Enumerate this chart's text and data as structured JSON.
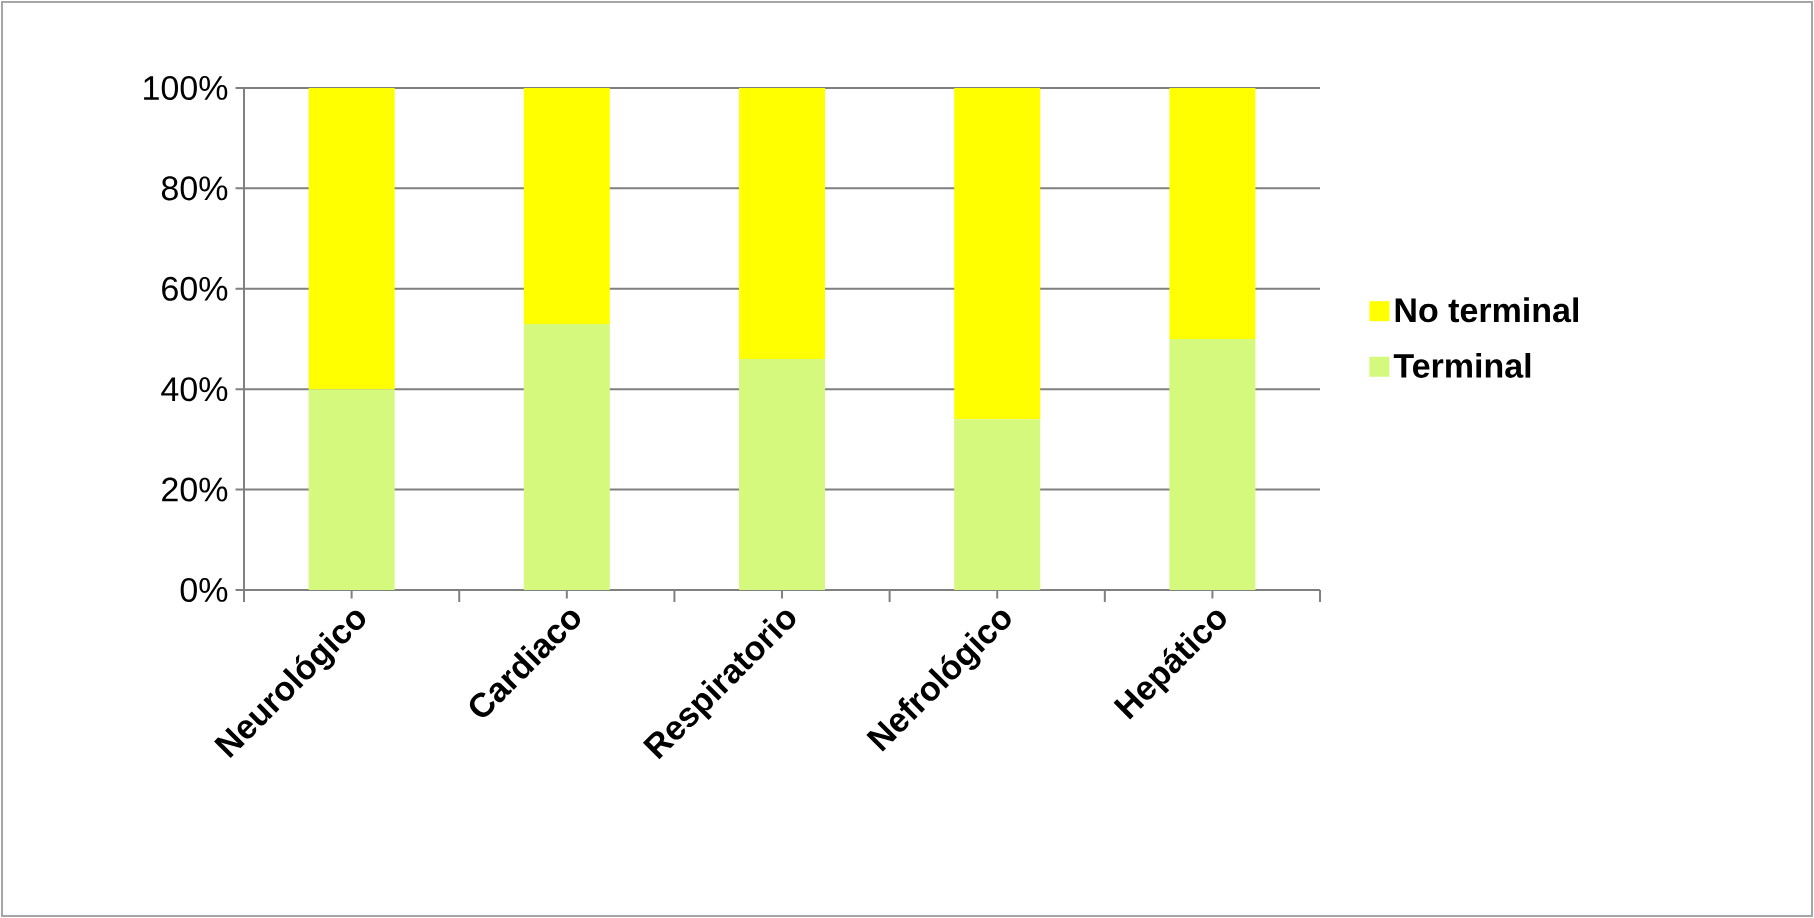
{
  "chart_data": {
    "type": "bar",
    "stacked": true,
    "categories": [
      "Neurológico",
      "Cardiaco",
      "Respiratorio",
      "Nefrológico",
      "Hepático"
    ],
    "series": [
      {
        "name": "Terminal",
        "color": "#d4f97c",
        "values": [
          40,
          53,
          46,
          34,
          50
        ]
      },
      {
        "name": "No terminal",
        "color": "#ffff00",
        "values": [
          60,
          47,
          54,
          66,
          50
        ]
      }
    ],
    "ylim": [
      0,
      100
    ],
    "yticks": [
      {
        "value": 0,
        "label": "0%"
      },
      {
        "value": 20,
        "label": "20%"
      },
      {
        "value": 40,
        "label": "40%"
      },
      {
        "value": 60,
        "label": "60%"
      },
      {
        "value": 80,
        "label": "80%"
      },
      {
        "value": 100,
        "label": "100%"
      }
    ],
    "grid": "y",
    "legend": "right"
  }
}
